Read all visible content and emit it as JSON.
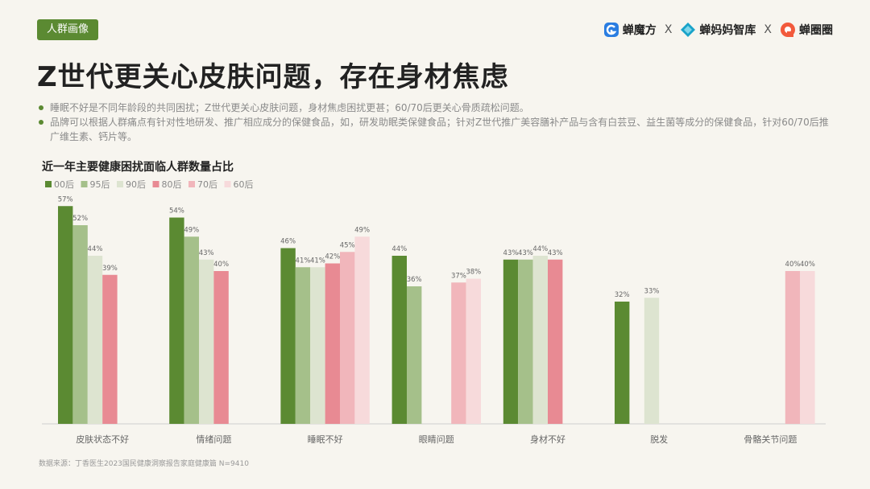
{
  "header": {
    "tag": "人群画像",
    "logos": [
      "蝉魔方",
      "蝉妈妈智库",
      "蝉圈圈"
    ],
    "separator": "X"
  },
  "title": "Z世代更关心皮肤问题，存在身材焦虑",
  "bullets": [
    "睡眠不好是不同年龄段的共同困扰；Z世代更关心皮肤问题，身材焦虑困扰更甚；60/70后更关心骨质疏松问题。",
    "品牌可以根据人群痛点有针对性地研发、推广相应成分的保健食品，如，研发助眠类保健食品；针对Z世代推广美容膳补产品与含有白芸豆、益生菌等成分的保健食品，针对60/70后推广维生素、钙片等。"
  ],
  "source": "数据来源：丁香医生2023国民健康洞察报告家庭健康篇 N=9410",
  "colors": {
    "accent": "#5b8a32",
    "series": [
      "#5b8a32",
      "#a5c08a",
      "#dde4d0",
      "#e88a93",
      "#f1b6bb",
      "#f7dadb"
    ]
  },
  "chart_data": {
    "type": "bar",
    "title": "近一年主要健康困扰面临人群数量占比",
    "legend_position": "top-left",
    "grid": false,
    "ylim": [
      0,
      60
    ],
    "categories": [
      "皮肤状态不好",
      "情绪问题",
      "睡眠不好",
      "眼睛问题",
      "身材不好",
      "脱发",
      "骨骼关节问题"
    ],
    "series": [
      {
        "name": "00后",
        "values": [
          57,
          54,
          46,
          44,
          43,
          32,
          null
        ]
      },
      {
        "name": "95后",
        "values": [
          52,
          49,
          41,
          36,
          43,
          null,
          null
        ]
      },
      {
        "name": "90后",
        "values": [
          44,
          43,
          41,
          null,
          44,
          33,
          null
        ]
      },
      {
        "name": "80后",
        "values": [
          39,
          40,
          42,
          null,
          43,
          null,
          null
        ]
      },
      {
        "name": "70后",
        "values": [
          null,
          null,
          45,
          37,
          null,
          null,
          40
        ]
      },
      {
        "name": "60后",
        "values": [
          null,
          null,
          49,
          38,
          null,
          null,
          40
        ]
      }
    ]
  }
}
